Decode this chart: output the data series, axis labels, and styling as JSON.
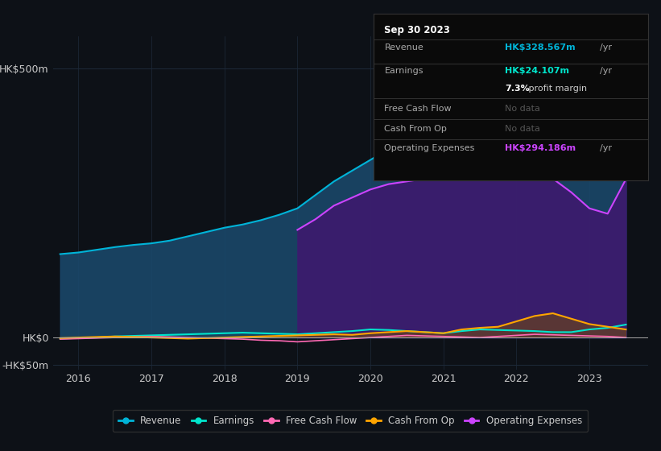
{
  "background_color": "#0d1117",
  "plot_bg_color": "#0d1117",
  "grid_color": "#1e2a3a",
  "years": [
    2015.75,
    2016.0,
    2016.25,
    2016.5,
    2016.75,
    2017.0,
    2017.25,
    2017.5,
    2017.75,
    2018.0,
    2018.25,
    2018.5,
    2018.75,
    2019.0,
    2019.25,
    2019.5,
    2019.75,
    2020.0,
    2020.25,
    2020.5,
    2020.75,
    2021.0,
    2021.25,
    2021.5,
    2021.75,
    2022.0,
    2022.25,
    2022.5,
    2022.75,
    2023.0,
    2023.25,
    2023.5
  ],
  "revenue": [
    155,
    158,
    163,
    168,
    172,
    175,
    180,
    188,
    196,
    204,
    210,
    218,
    228,
    240,
    265,
    290,
    310,
    330,
    350,
    370,
    390,
    430,
    470,
    500,
    490,
    460,
    430,
    400,
    360,
    320,
    305,
    329
  ],
  "operating_expenses": [
    0,
    0,
    0,
    0,
    0,
    0,
    0,
    0,
    0,
    0,
    0,
    0,
    0,
    200,
    220,
    245,
    260,
    275,
    285,
    290,
    295,
    310,
    330,
    355,
    345,
    330,
    320,
    295,
    270,
    240,
    230,
    294
  ],
  "earnings": [
    -2,
    -1,
    0,
    2,
    3,
    4,
    5,
    6,
    7,
    8,
    9,
    8,
    7,
    6,
    8,
    10,
    12,
    15,
    14,
    12,
    10,
    8,
    12,
    15,
    14,
    13,
    12,
    10,
    10,
    15,
    18,
    24
  ],
  "free_cash_flow": [
    -3,
    -2,
    -1,
    0,
    1,
    2,
    1,
    0,
    -1,
    -2,
    -3,
    -5,
    -6,
    -8,
    -6,
    -4,
    -2,
    0,
    2,
    4,
    3,
    2,
    1,
    0,
    2,
    4,
    6,
    5,
    4,
    3,
    2,
    0
  ],
  "cash_from_op": [
    -1,
    0,
    1,
    2,
    1,
    0,
    -1,
    -2,
    -1,
    0,
    1,
    2,
    3,
    4,
    5,
    6,
    5,
    8,
    10,
    12,
    10,
    8,
    15,
    18,
    20,
    30,
    40,
    45,
    35,
    25,
    20,
    15
  ],
  "revenue_color": "#00b4d8",
  "revenue_fill": "#1a4a6e",
  "op_exp_color": "#cc44ff",
  "op_exp_fill": "#3d1a6e",
  "earnings_color": "#00e5cc",
  "fcf_color": "#ff69b4",
  "cash_from_op_color": "#ffa500",
  "ylim_min": -60,
  "ylim_max": 560,
  "yticks": [
    -50,
    0,
    500
  ],
  "ytick_labels": [
    "-HK$50m",
    "HK$0",
    "HK$500m"
  ],
  "xtick_years": [
    2016,
    2017,
    2018,
    2019,
    2020,
    2021,
    2022,
    2023
  ],
  "legend_labels": [
    "Revenue",
    "Earnings",
    "Free Cash Flow",
    "Cash From Op",
    "Operating Expenses"
  ],
  "legend_colors": [
    "#00b4d8",
    "#00e5cc",
    "#ff69b4",
    "#ffa500",
    "#cc44ff"
  ],
  "tooltip": {
    "title": "Sep 30 2023",
    "rows": [
      {
        "label": "Revenue",
        "value": "HK$328.567m",
        "suffix": "/yr",
        "value_color": "#00b4d8",
        "dimmed": false
      },
      {
        "label": "Earnings",
        "value": "HK$24.107m",
        "suffix": "/yr",
        "value_color": "#00e5cc",
        "dimmed": false
      },
      {
        "label": "",
        "value": "7.3%",
        "suffix": " profit margin",
        "value_color": "#ffffff",
        "dimmed": false,
        "extra": true
      },
      {
        "label": "Free Cash Flow",
        "value": "No data",
        "suffix": "",
        "value_color": "#555555",
        "dimmed": true
      },
      {
        "label": "Cash From Op",
        "value": "No data",
        "suffix": "",
        "value_color": "#555555",
        "dimmed": true
      },
      {
        "label": "Operating Expenses",
        "value": "HK$294.186m",
        "suffix": "/yr",
        "value_color": "#cc44ff",
        "dimmed": false
      }
    ]
  }
}
